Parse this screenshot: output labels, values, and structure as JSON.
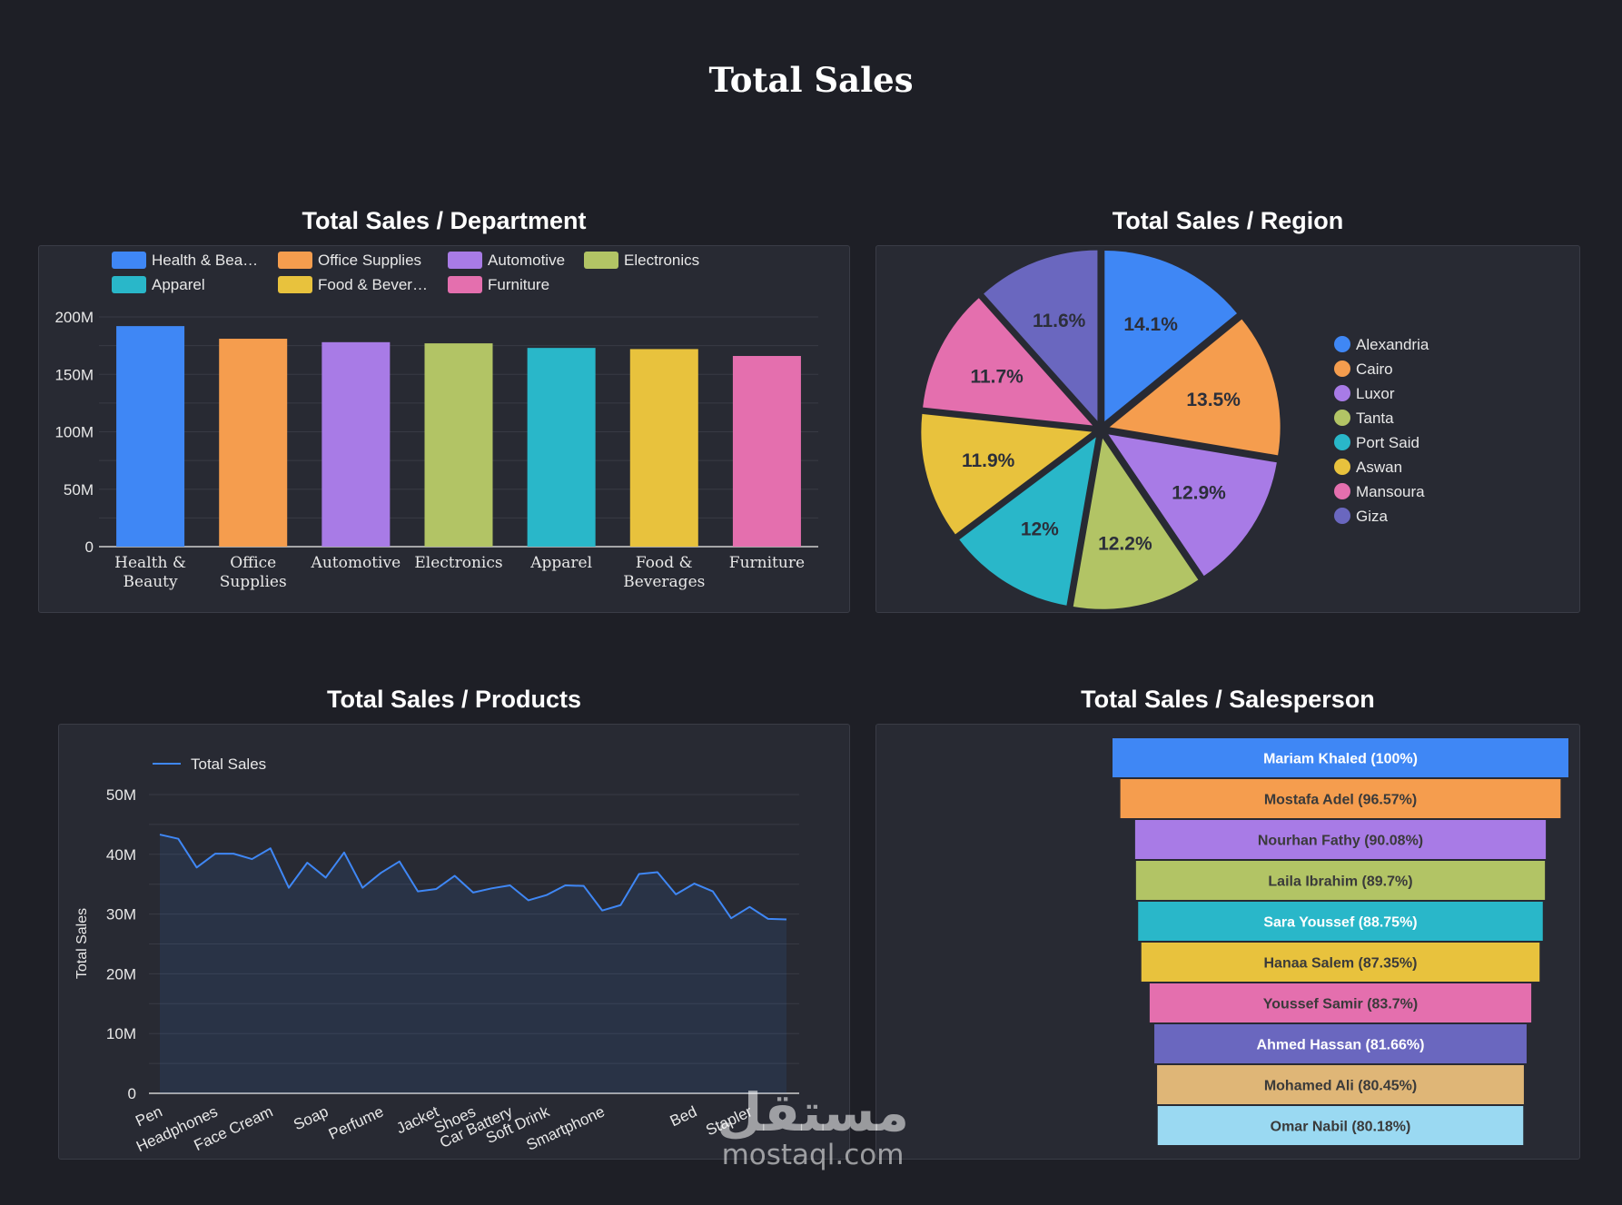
{
  "page": {
    "title": "Total Sales"
  },
  "colors": {
    "background": "#1e1f26",
    "panel": "#282a33",
    "grid": "#383a44",
    "blue": "#3f87f5",
    "orange": "#f59d4e",
    "purple": "#a87be6",
    "lime": "#b2c465",
    "teal": "#29b7c9",
    "yellow": "#e8c23d",
    "pink": "#e46fae",
    "indigo": "#6a67bf",
    "tan": "#dfb677",
    "skyblue": "#9ad9f2"
  },
  "watermark": {
    "arabic": "مستقل",
    "latin": "mostaql.com"
  },
  "charts": {
    "department": {
      "title": "Total Sales / Department",
      "legend": [
        {
          "label": "Health & Bea…",
          "color": "#3f87f5"
        },
        {
          "label": "Office Supplies",
          "color": "#f59d4e"
        },
        {
          "label": "Automotive",
          "color": "#a87be6"
        },
        {
          "label": "Electronics",
          "color": "#b2c465"
        },
        {
          "label": "Apparel",
          "color": "#29b7c9"
        },
        {
          "label": "Food & Bever…",
          "color": "#e8c23d"
        },
        {
          "label": "Furniture",
          "color": "#e46fae"
        }
      ]
    },
    "region": {
      "title": "Total Sales / Region"
    },
    "products": {
      "title": "Total Sales / Products",
      "legend_label": "Total Sales"
    },
    "salesperson": {
      "title": "Total Sales / Salesperson"
    }
  },
  "chart_data": [
    {
      "type": "bar",
      "title": "Total Sales / Department",
      "categories": [
        "Health & Beauty",
        "Office Supplies",
        "Automotive",
        "Electronics",
        "Apparel",
        "Food & Beverages",
        "Furniture"
      ],
      "category_lines": [
        [
          "Health &",
          "Beauty"
        ],
        [
          "Office",
          "Supplies"
        ],
        [
          "Automotive"
        ],
        [
          "Electronics"
        ],
        [
          "Apparel"
        ],
        [
          "Food &",
          "Beverages"
        ],
        [
          "Furniture"
        ]
      ],
      "values": [
        192,
        181,
        178,
        177,
        173,
        172,
        166
      ],
      "colors": [
        "#3f87f5",
        "#f59d4e",
        "#a87be6",
        "#b2c465",
        "#29b7c9",
        "#e8c23d",
        "#e46fae"
      ],
      "ylim": [
        0,
        200
      ],
      "yticks": [
        0,
        50,
        100,
        150,
        200
      ],
      "ytick_labels": [
        "0",
        "50M",
        "100M",
        "150M",
        "200M"
      ],
      "grid": true,
      "legend": "top"
    },
    {
      "type": "pie",
      "title": "Total Sales / Region",
      "labels": [
        "Alexandria",
        "Cairo",
        "Luxor",
        "Tanta",
        "Port Said",
        "Aswan",
        "Mansoura",
        "Giza"
      ],
      "values": [
        14.1,
        13.5,
        12.9,
        12.2,
        12.0,
        11.9,
        11.7,
        11.6
      ],
      "value_labels": [
        "14.1%",
        "13.5%",
        "12.9%",
        "12.2%",
        "12%",
        "11.9%",
        "11.7%",
        "11.6%"
      ],
      "colors": [
        "#3f87f5",
        "#f59d4e",
        "#a87be6",
        "#b2c465",
        "#29b7c9",
        "#e8c23d",
        "#e46fae",
        "#6a67bf"
      ],
      "legend": "right"
    },
    {
      "type": "line",
      "title": "Total Sales / Products",
      "ylabel": "Total Sales",
      "series": [
        {
          "name": "Total Sales",
          "color": "#3f87f5",
          "values": [
            43.3,
            42.6,
            37.8,
            40.1,
            40.1,
            39.2,
            41.0,
            34.4,
            38.6,
            36.1,
            40.3,
            34.4,
            36.9,
            38.8,
            33.8,
            34.2,
            36.4,
            33.6,
            34.3,
            34.8,
            32.3,
            33.2,
            34.8,
            34.7,
            30.6,
            31.5,
            36.7,
            37.0,
            33.3,
            35.1,
            33.8,
            29.3,
            31.2,
            29.2,
            29.1
          ]
        }
      ],
      "tick_labels": [
        "Pen",
        "Headphones",
        "Face Cream",
        "Soap",
        "Perfume",
        "Jacket",
        "Shoes",
        "Car Battery",
        "Soft Drink",
        "Smartphone",
        "Bed",
        "Stapler"
      ],
      "tick_indices": [
        0,
        3,
        6,
        9,
        12,
        15,
        17,
        19,
        21,
        24,
        29,
        32
      ],
      "ylim": [
        0,
        50
      ],
      "yticks": [
        0,
        10,
        20,
        30,
        40,
        50
      ],
      "ytick_labels": [
        "0",
        "10M",
        "20M",
        "30M",
        "40M",
        "50M"
      ],
      "grid": true,
      "legend": "top-left"
    },
    {
      "type": "bar",
      "orientation": "horizontal-funnel",
      "title": "Total Sales / Salesperson",
      "categories": [
        "Mariam Khaled",
        "Mostafa Adel",
        "Nourhan Fathy",
        "Laila Ibrahim",
        "Sara Youssef",
        "Hanaa Salem",
        "Youssef Samir",
        "Ahmed Hassan",
        "Mohamed Ali",
        "Omar Nabil"
      ],
      "values": [
        100,
        96.57,
        90.08,
        89.7,
        88.75,
        87.35,
        83.7,
        81.66,
        80.45,
        80.18
      ],
      "labels": [
        "Mariam Khaled (100%)",
        "Mostafa Adel (96.57%)",
        "Nourhan Fathy (90.08%)",
        "Laila Ibrahim (89.7%)",
        "Sara Youssef (88.75%)",
        "Hanaa Salem (87.35%)",
        "Youssef Samir (83.7%)",
        "Ahmed Hassan (81.66%)",
        "Mohamed Ali (80.45%)",
        "Omar Nabil (80.18%)"
      ],
      "colors": [
        "#3f87f5",
        "#f59d4e",
        "#a87be6",
        "#b2c465",
        "#29b7c9",
        "#e8c23d",
        "#e46fae",
        "#6a67bf",
        "#dfb677",
        "#9ad9f2"
      ],
      "label_colors": [
        "#ffffff",
        "#3a3a3a",
        "#3a3a3a",
        "#3a3a3a",
        "#ffffff",
        "#3a3a3a",
        "#3a3a3a",
        "#ffffff",
        "#3a3a3a",
        "#3a3a3a"
      ]
    }
  ]
}
